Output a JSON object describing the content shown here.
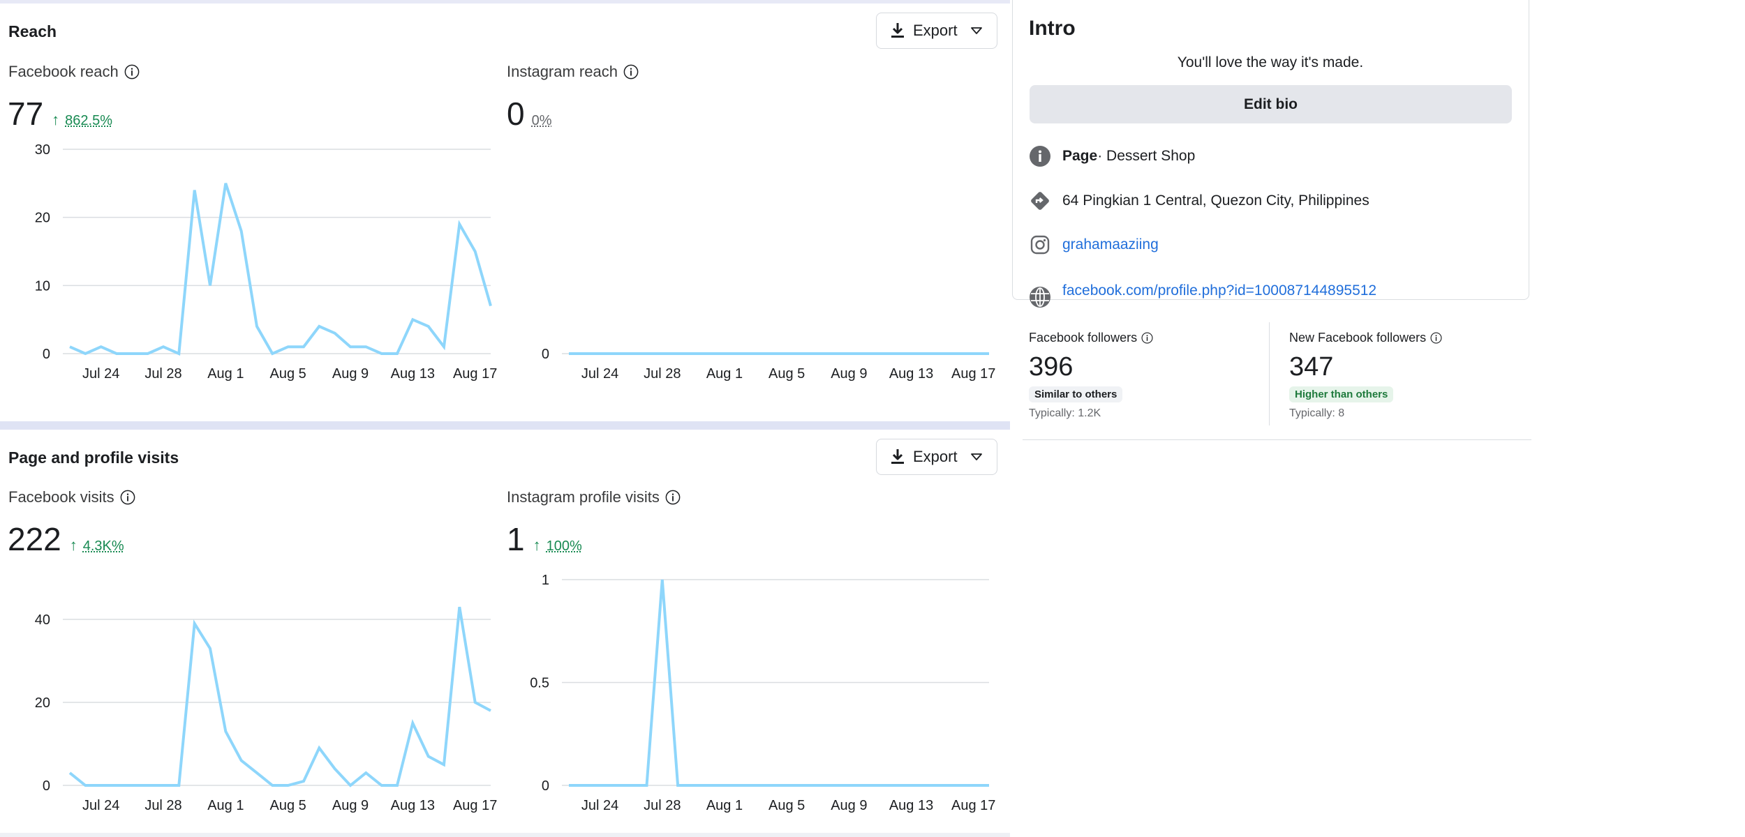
{
  "reach": {
    "title": "Reach",
    "export_label": "Export",
    "facebook": {
      "label": "Facebook reach",
      "value": "77",
      "change": "862.5%"
    },
    "instagram": {
      "label": "Instagram reach",
      "value": "0",
      "change": "0%"
    }
  },
  "visits": {
    "title": "Page and profile visits",
    "export_label": "Export",
    "facebook": {
      "label": "Facebook visits",
      "value": "222",
      "change": "4.3K%"
    },
    "instagram": {
      "label": "Instagram profile visits",
      "value": "1",
      "change": "100%"
    }
  },
  "intro": {
    "title": "Intro",
    "tagline": "You'll love the way it's made.",
    "edit_bio_label": "Edit bio",
    "page_type_label": "Page",
    "page_category": " · Dessert Shop",
    "address": "64 Pingkian 1 Central, Quezon City, Philippines",
    "instagram_handle": "grahamaaziing",
    "profile_url": "facebook.com/profile.php?id=100087144895512"
  },
  "followers": {
    "facebook_followers": {
      "label": "Facebook followers",
      "value": "396",
      "badge": "Similar to others",
      "typically": "Typically: 1.2K"
    },
    "new_facebook_followers": {
      "label": "New Facebook followers",
      "value": "347",
      "badge": "Higher than others",
      "typically": "Typically: 8"
    }
  },
  "icons": {
    "download": "download-icon",
    "caret": "caret-down-icon",
    "info": "info-icon",
    "page_info": "info-circle-icon",
    "directions": "directions-icon",
    "instagram": "instagram-icon",
    "globe": "globe-icon"
  },
  "colors": {
    "line": "#8ed6fb",
    "grid": "#dadde1",
    "positive": "#188a52",
    "link": "#216fdb"
  },
  "chart_data": [
    {
      "id": "facebook_reach",
      "type": "line",
      "x_tick_labels": [
        "Jul 24",
        "Jul 28",
        "Aug 1",
        "Aug 5",
        "Aug 9",
        "Aug 13",
        "Aug 17"
      ],
      "x_start": "Jul 22",
      "x_end": "Aug 18",
      "y_ticks": [
        0,
        10,
        20,
        30
      ],
      "ylim": [
        0,
        30
      ],
      "values": [
        1,
        0,
        1,
        0,
        0,
        0,
        1,
        0,
        24,
        10,
        25,
        18,
        4,
        0,
        1,
        1,
        4,
        3,
        1,
        1,
        0,
        0,
        5,
        4,
        1,
        19,
        15,
        7
      ],
      "grid": true
    },
    {
      "id": "instagram_reach",
      "type": "line",
      "x_tick_labels": [
        "Jul 24",
        "Jul 28",
        "Aug 1",
        "Aug 5",
        "Aug 9",
        "Aug 13",
        "Aug 17"
      ],
      "x_start": "Jul 22",
      "x_end": "Aug 18",
      "y_ticks": [
        0
      ],
      "ylim": [
        0,
        1
      ],
      "values": [
        0,
        0,
        0,
        0,
        0,
        0,
        0,
        0,
        0,
        0,
        0,
        0,
        0,
        0,
        0,
        0,
        0,
        0,
        0,
        0,
        0,
        0,
        0,
        0,
        0,
        0,
        0,
        0
      ],
      "grid": true
    },
    {
      "id": "facebook_visits",
      "type": "line",
      "x_tick_labels": [
        "Jul 24",
        "Jul 28",
        "Aug 1",
        "Aug 5",
        "Aug 9",
        "Aug 13",
        "Aug 17"
      ],
      "x_start": "Jul 22",
      "x_end": "Aug 18",
      "y_ticks": [
        0,
        20,
        40
      ],
      "ylim": [
        0,
        47
      ],
      "values": [
        3,
        0,
        0,
        0,
        0,
        0,
        0,
        0,
        39,
        33,
        13,
        6,
        3,
        0,
        0,
        1,
        9,
        4,
        0,
        3,
        0,
        0,
        15,
        7,
        5,
        43,
        20,
        18
      ],
      "grid": true
    },
    {
      "id": "instagram_profile_visits",
      "type": "line",
      "x_tick_labels": [
        "Jul 24",
        "Jul 28",
        "Aug 1",
        "Aug 5",
        "Aug 9",
        "Aug 13",
        "Aug 17"
      ],
      "x_start": "Jul 22",
      "x_end": "Aug 18",
      "y_ticks": [
        0,
        0.5,
        1
      ],
      "ylim": [
        0,
        1
      ],
      "values": [
        0,
        0,
        0,
        0,
        0,
        0,
        1,
        0,
        0,
        0,
        0,
        0,
        0,
        0,
        0,
        0,
        0,
        0,
        0,
        0,
        0,
        0,
        0,
        0,
        0,
        0,
        0,
        0
      ],
      "grid": true
    }
  ]
}
